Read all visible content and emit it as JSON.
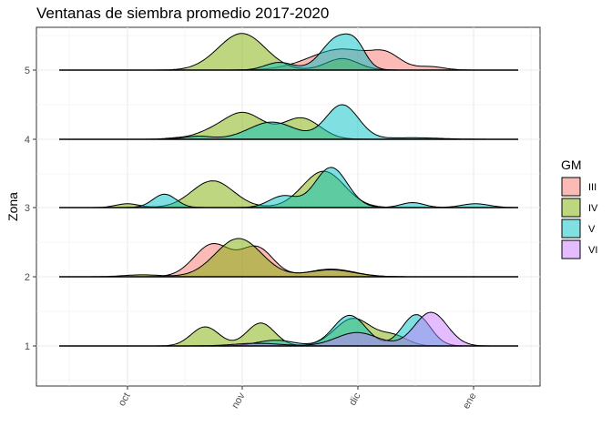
{
  "chart_data": {
    "type": "ridgeline",
    "title": "Ventanas de siembra promedio 2017-2020",
    "xlabel": "",
    "ylabel": "Zona",
    "x_ticks": [
      "oct",
      "nov",
      "dic",
      "ene"
    ],
    "y_categories": [
      "1",
      "2",
      "3",
      "4",
      "5"
    ],
    "legend": {
      "title": "GM",
      "placement": "right",
      "entries": [
        {
          "name": "III",
          "color": "#F8766D"
        },
        {
          "name": "IV",
          "color": "#7CAE00"
        },
        {
          "name": "V",
          "color": "#00BFC4"
        },
        {
          "name": "VI",
          "color": "#C77CFF"
        }
      ]
    },
    "grid": true,
    "series": [
      {
        "zona": "5",
        "gm": "III",
        "peaks": [
          {
            "center": "nov 28",
            "height": 0.55,
            "width": 14
          },
          {
            "center": "dic 10",
            "height": 0.28,
            "width": 6
          },
          {
            "center": "dic 22",
            "height": 0.08,
            "width": 6
          }
        ]
      },
      {
        "zona": "5",
        "gm": "IV",
        "peaks": [
          {
            "center": "oct 24",
            "height": 0.03,
            "width": 8
          },
          {
            "center": "nov 1",
            "height": 0.95,
            "width": 10
          },
          {
            "center": "nov 28",
            "height": 0.3,
            "width": 7
          }
        ]
      },
      {
        "zona": "5",
        "gm": "V",
        "peaks": [
          {
            "center": "nov 27",
            "height": 0.86,
            "width": 7
          },
          {
            "center": "dic 2",
            "height": 0.35,
            "width": 4
          },
          {
            "center": "nov 11",
            "height": 0.2,
            "width": 6
          }
        ]
      },
      {
        "zona": "4",
        "gm": "IV",
        "peaks": [
          {
            "center": "nov 1",
            "height": 0.7,
            "width": 9
          },
          {
            "center": "nov 17",
            "height": 0.55,
            "width": 8
          },
          {
            "center": "oct 22",
            "height": 0.1,
            "width": 6
          },
          {
            "center": "oct 14",
            "height": 0.03,
            "width": 5
          }
        ]
      },
      {
        "zona": "4",
        "gm": "V",
        "peaks": [
          {
            "center": "nov 9",
            "height": 0.45,
            "width": 10
          },
          {
            "center": "nov 28",
            "height": 0.9,
            "width": 7
          },
          {
            "center": "dic 17",
            "height": 0.04,
            "width": 12
          },
          {
            "center": "oct 20",
            "height": 0.08,
            "width": 6
          }
        ]
      },
      {
        "zona": "3",
        "gm": "IV",
        "peaks": [
          {
            "center": "oct 24",
            "height": 0.7,
            "width": 9
          },
          {
            "center": "nov 23",
            "height": 0.95,
            "width": 9
          },
          {
            "center": "oct 1",
            "height": 0.1,
            "width": 5
          }
        ]
      },
      {
        "zona": "3",
        "gm": "V",
        "peaks": [
          {
            "center": "oct 11",
            "height": 0.35,
            "width": 5
          },
          {
            "center": "nov 25",
            "height": 1.05,
            "width": 7
          },
          {
            "center": "nov 12",
            "height": 0.3,
            "width": 6
          },
          {
            "center": "dic 17",
            "height": 0.13,
            "width": 5
          },
          {
            "center": "ene 3",
            "height": 0.1,
            "width": 6
          }
        ]
      },
      {
        "zona": "2",
        "gm": "III",
        "peaks": [
          {
            "center": "oct 24",
            "height": 0.85,
            "width": 8
          },
          {
            "center": "nov 5",
            "height": 0.75,
            "width": 7
          },
          {
            "center": "nov 25",
            "height": 0.2,
            "width": 10
          }
        ]
      },
      {
        "zona": "2",
        "gm": "IV",
        "peaks": [
          {
            "center": "oct 31",
            "height": 1.0,
            "width": 10
          },
          {
            "center": "nov 25",
            "height": 0.18,
            "width": 10
          },
          {
            "center": "oct 5",
            "height": 0.05,
            "width": 8
          }
        ]
      },
      {
        "zona": "1",
        "gm": "IV",
        "peaks": [
          {
            "center": "oct 22",
            "height": 0.5,
            "width": 6
          },
          {
            "center": "nov 6",
            "height": 0.6,
            "width": 6
          },
          {
            "center": "dic 1",
            "height": 0.72,
            "width": 8
          },
          {
            "center": "dic 12",
            "height": 0.25,
            "width": 6
          }
        ]
      },
      {
        "zona": "1",
        "gm": "V",
        "peaks": [
          {
            "center": "nov 30",
            "height": 0.8,
            "width": 7
          },
          {
            "center": "dic 18",
            "height": 0.82,
            "width": 6
          },
          {
            "center": "nov 10",
            "height": 0.15,
            "width": 8
          }
        ]
      },
      {
        "zona": "1",
        "gm": "VI",
        "peaks": [
          {
            "center": "dic 22",
            "height": 0.88,
            "width": 7
          },
          {
            "center": "dic 2",
            "height": 0.35,
            "width": 9
          },
          {
            "center": "nov 5",
            "height": 0.07,
            "width": 10
          }
        ]
      }
    ]
  }
}
